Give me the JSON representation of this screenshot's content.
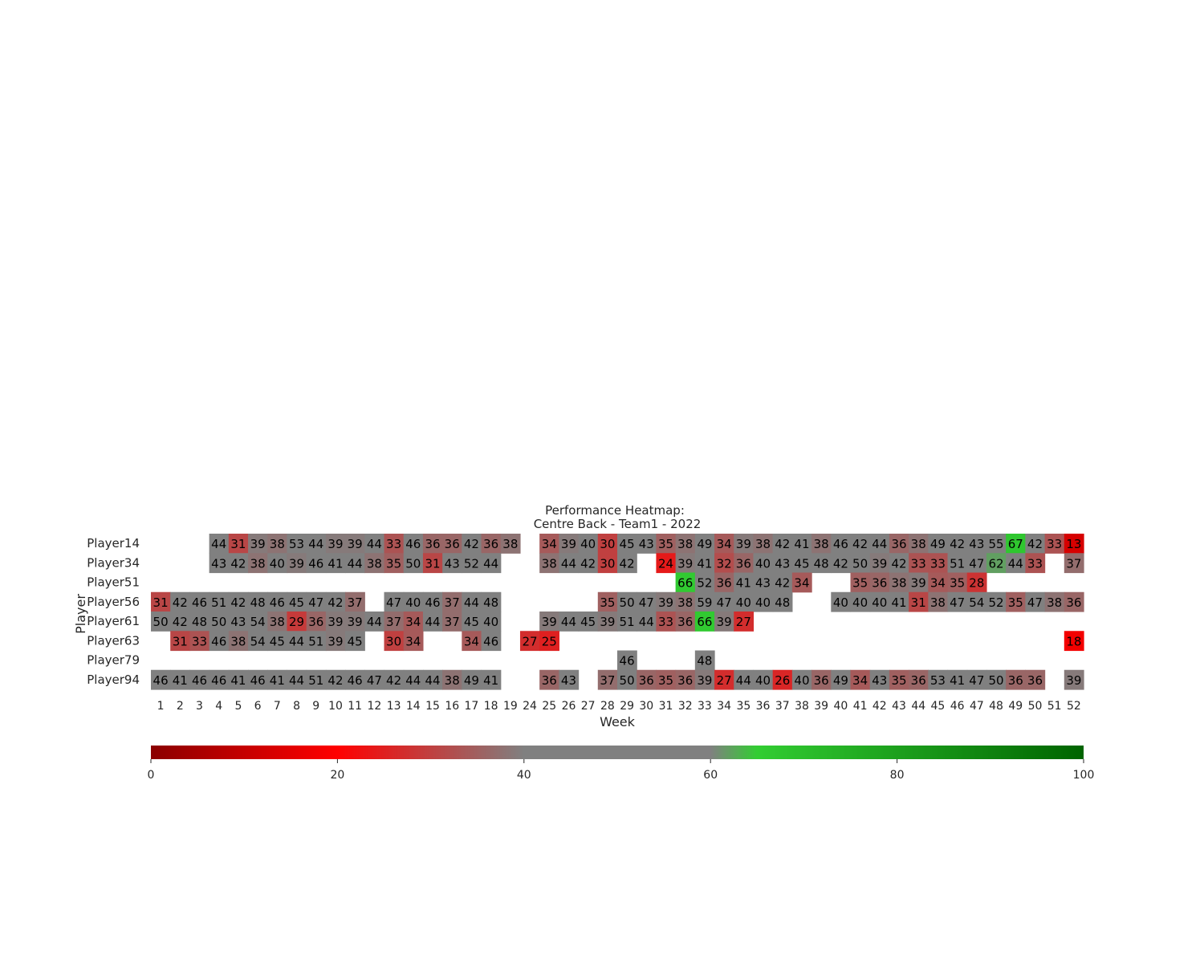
{
  "chart_data": {
    "type": "heatmap",
    "title": "Performance Heatmap:\nCentre Back - Team1 - 2022",
    "title_lines": [
      "Performance Heatmap:",
      "Centre Back - Team1 - 2022"
    ],
    "xlabel": "Week",
    "ylabel": "Player",
    "x": [
      "1",
      "2",
      "3",
      "4",
      "5",
      "6",
      "7",
      "8",
      "9",
      "10",
      "11",
      "12",
      "13",
      "14",
      "15",
      "16",
      "17",
      "18",
      "19",
      "24",
      "25",
      "26",
      "27",
      "28",
      "29",
      "30",
      "31",
      "32",
      "33",
      "34",
      "35",
      "36",
      "37",
      "38",
      "39",
      "40",
      "41",
      "42",
      "43",
      "44",
      "45",
      "46",
      "47",
      "48",
      "49",
      "50",
      "51",
      "52"
    ],
    "y": [
      "Player14",
      "Player34",
      "Player51",
      "Player56",
      "Player61",
      "Player63",
      "Player79",
      "Player94"
    ],
    "values": [
      [
        null,
        null,
        null,
        44,
        31,
        39,
        38,
        53,
        44,
        39,
        39,
        44,
        33,
        46,
        36,
        36,
        42,
        36,
        38,
        null,
        34,
        39,
        40,
        30,
        45,
        43,
        35,
        38,
        49,
        34,
        39,
        38,
        42,
        41,
        38,
        46,
        42,
        44,
        36,
        38,
        49,
        42,
        43,
        55,
        67,
        42,
        33,
        13
      ],
      [
        null,
        null,
        null,
        43,
        42,
        38,
        40,
        39,
        46,
        41,
        44,
        38,
        35,
        50,
        31,
        43,
        52,
        44,
        null,
        null,
        38,
        44,
        42,
        30,
        42,
        null,
        24,
        39,
        41,
        32,
        36,
        40,
        43,
        45,
        48,
        42,
        50,
        39,
        42,
        33,
        33,
        51,
        47,
        62,
        44,
        33,
        null,
        37
      ],
      [
        null,
        null,
        null,
        null,
        null,
        null,
        null,
        null,
        null,
        null,
        null,
        null,
        null,
        null,
        null,
        null,
        null,
        null,
        null,
        null,
        null,
        null,
        null,
        null,
        null,
        null,
        null,
        66,
        52,
        36,
        41,
        43,
        42,
        34,
        null,
        null,
        35,
        36,
        38,
        39,
        34,
        35,
        28,
        null,
        null,
        null,
        null,
        null
      ],
      [
        31,
        42,
        46,
        51,
        42,
        48,
        46,
        45,
        47,
        42,
        37,
        null,
        47,
        40,
        46,
        37,
        44,
        48,
        null,
        null,
        null,
        null,
        null,
        35,
        50,
        47,
        39,
        38,
        59,
        47,
        40,
        40,
        48,
        null,
        null,
        40,
        40,
        40,
        41,
        31,
        38,
        47,
        54,
        52,
        35,
        47,
        38,
        36
      ],
      [
        50,
        42,
        48,
        50,
        43,
        54,
        38,
        29,
        36,
        39,
        39,
        44,
        37,
        34,
        44,
        37,
        45,
        40,
        null,
        null,
        39,
        44,
        45,
        39,
        51,
        44,
        33,
        36,
        66,
        39,
        27,
        null,
        null,
        null,
        null,
        null,
        null,
        null,
        null,
        null,
        null,
        null,
        null,
        null,
        null,
        null,
        null,
        null
      ],
      [
        null,
        31,
        33,
        46,
        38,
        54,
        45,
        44,
        51,
        39,
        45,
        null,
        30,
        34,
        null,
        null,
        34,
        46,
        null,
        27,
        25,
        null,
        null,
        null,
        null,
        null,
        null,
        null,
        null,
        null,
        null,
        null,
        null,
        null,
        null,
        null,
        null,
        null,
        null,
        null,
        null,
        null,
        null,
        null,
        null,
        null,
        null,
        18
      ],
      [
        null,
        null,
        null,
        null,
        null,
        null,
        null,
        null,
        null,
        null,
        null,
        null,
        null,
        null,
        null,
        null,
        null,
        null,
        null,
        null,
        null,
        null,
        null,
        null,
        46,
        null,
        null,
        null,
        48,
        null,
        null,
        null,
        null,
        null,
        null,
        null,
        null,
        null,
        null,
        null,
        null,
        null,
        null,
        null,
        null,
        null,
        null,
        null
      ],
      [
        46,
        41,
        46,
        46,
        41,
        46,
        41,
        44,
        51,
        42,
        46,
        47,
        42,
        44,
        44,
        38,
        49,
        41,
        null,
        null,
        36,
        43,
        null,
        37,
        50,
        36,
        35,
        36,
        39,
        27,
        44,
        40,
        26,
        40,
        36,
        49,
        34,
        43,
        35,
        36,
        53,
        41,
        47,
        50,
        36,
        36,
        null,
        39
      ]
    ],
    "colorbar": {
      "range": [
        0,
        100
      ],
      "ticks": [
        "0",
        "20",
        "40",
        "60",
        "80",
        "100"
      ],
      "stops": [
        {
          "value": 0,
          "color": "#8b0000"
        },
        {
          "value": 20,
          "color": "#ff0000"
        },
        {
          "value": 40,
          "color": "#808080"
        },
        {
          "value": 60,
          "color": "#808080"
        },
        {
          "value": 65,
          "color": "#32cd32"
        },
        {
          "value": 100,
          "color": "#006400"
        }
      ]
    },
    "annotated": true,
    "grid": false,
    "legend": "none",
    "colorbar_placement": "bottom"
  }
}
